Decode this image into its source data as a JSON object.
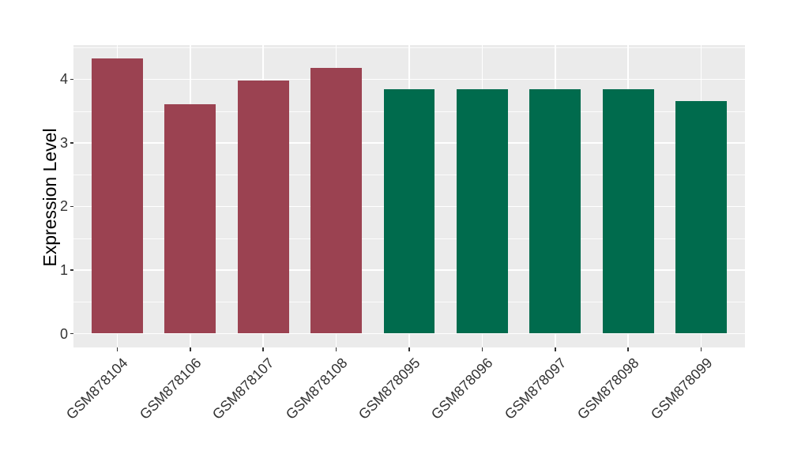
{
  "chart_data": {
    "type": "bar",
    "title": "",
    "xlabel": "",
    "ylabel": "Expression Level",
    "categories": [
      "GSM878104",
      "GSM878106",
      "GSM878107",
      "GSM878108",
      "GSM878095",
      "GSM878096",
      "GSM878097",
      "GSM878098",
      "GSM878099"
    ],
    "values": [
      4.33,
      3.61,
      3.98,
      4.18,
      3.85,
      3.85,
      3.85,
      3.85,
      3.66
    ],
    "bar_colors": [
      "#9B4251",
      "#9B4251",
      "#9B4251",
      "#9B4251",
      "#006B4D",
      "#006B4D",
      "#006B4D",
      "#006B4D",
      "#006B4D"
    ],
    "group_colors": {
      "maroon_group": "#9B4251",
      "green_group": "#006B4D"
    },
    "yticks": [
      0,
      1,
      2,
      3,
      4
    ],
    "yticks_minor": [
      0.5,
      1.5,
      2.5,
      3.5,
      4.5
    ],
    "ylim": [
      0,
      4.54
    ],
    "grid": "on",
    "legend_position": "none",
    "panel_background": "#EBEBEB",
    "grid_color": "#FFFFFF",
    "axis_text_color": "#333333",
    "tick_color": "#333333",
    "bar_width_fraction": 0.7
  }
}
